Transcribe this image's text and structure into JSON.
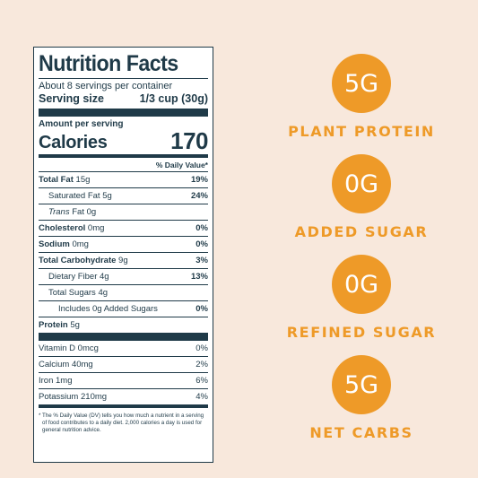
{
  "label": {
    "title": "Nutrition Facts",
    "servings_per_container": "About 8 servings per container",
    "serving_size_label": "Serving size",
    "serving_size_value": "1/3 cup (30g)",
    "amount_per_serving": "Amount per serving",
    "calories_label": "Calories",
    "calories_value": "170",
    "daily_value_header": "% Daily Value*",
    "nutrients": [
      {
        "name": "Total Fat",
        "amount": "15g",
        "dv": "19%"
      },
      {
        "name": "Saturated Fat",
        "amount": "5g",
        "dv": "24%"
      },
      {
        "name": "Trans",
        "suffix": "Fat 0g",
        "dv": ""
      },
      {
        "name": "Cholesterol",
        "amount": "0mg",
        "dv": "0%"
      },
      {
        "name": "Sodium",
        "amount": "0mg",
        "dv": "0%"
      },
      {
        "name": "Total Carbohydrate",
        "amount": "9g",
        "dv": "3%"
      },
      {
        "name": "Dietary Fiber",
        "amount": "4g",
        "dv": "13%"
      },
      {
        "name": "Total Sugars",
        "amount": "4g",
        "dv": ""
      },
      {
        "name": "Includes 0g Added Sugars",
        "amount": "",
        "dv": "0%"
      },
      {
        "name": "Protein",
        "amount": "5g",
        "dv": ""
      }
    ],
    "vitamins": [
      {
        "name": "Vitamin D",
        "amount": "0mcg",
        "dv": "0%"
      },
      {
        "name": "Calcium",
        "amount": "40mg",
        "dv": "2%"
      },
      {
        "name": "Iron",
        "amount": "1mg",
        "dv": "6%"
      },
      {
        "name": "Potassium",
        "amount": "210mg",
        "dv": "4%"
      }
    ],
    "footnote": "* The % Daily Value (DV) tells you how much a nutrient in a serving of food contributes to a daily diet. 2,000 calories a day is used for general nutrition advice."
  },
  "badges": [
    {
      "value": "5G",
      "label": "PLANT PROTEIN"
    },
    {
      "value": "0G",
      "label": "ADDED SUGAR"
    },
    {
      "value": "0G",
      "label": "REFINED SUGAR"
    },
    {
      "value": "5G",
      "label": "NET CARBS"
    }
  ],
  "colors": {
    "background": "#f8e8dc",
    "accent": "#ee9a28",
    "label_ink": "#1f3a48"
  }
}
